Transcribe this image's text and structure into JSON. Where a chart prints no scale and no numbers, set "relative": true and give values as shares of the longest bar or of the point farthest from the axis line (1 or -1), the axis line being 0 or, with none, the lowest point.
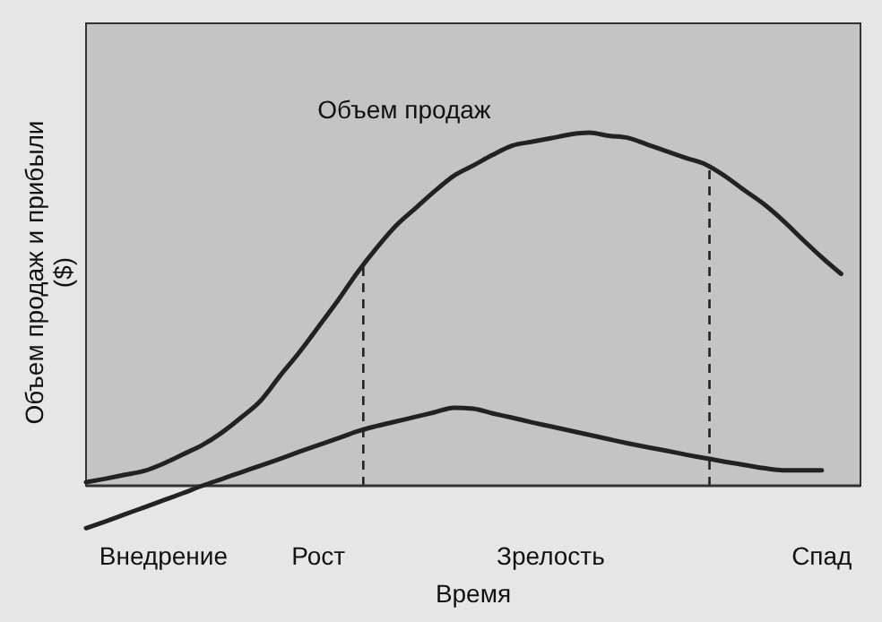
{
  "chart_data": {
    "type": "line",
    "relative": true,
    "xlabel": "Время",
    "ylabel": "Объем продаж и прибыли ($)",
    "categories": [
      null,
      null,
      null,
      null,
      "Внедрение",
      null,
      null,
      null,
      null,
      null,
      null,
      null,
      "Рост",
      null,
      null,
      null,
      null,
      null,
      null,
      null,
      null,
      null,
      null,
      null,
      "Зрелость",
      null,
      null,
      null,
      null,
      null,
      null,
      null,
      null,
      null,
      null,
      null,
      null,
      null,
      "Спад",
      null,
      null
    ],
    "series": [
      {
        "name": "Объем продаж",
        "color": "#222222",
        "values": [
          0.01,
          0.02,
          0.031,
          0.042,
          0.063,
          0.089,
          0.115,
          0.15,
          0.193,
          0.24,
          0.31,
          0.377,
          0.45,
          0.524,
          0.603,
          0.673,
          0.736,
          0.785,
          0.834,
          0.878,
          0.907,
          0.937,
          0.963,
          0.974,
          0.984,
          0.995,
          1,
          0.991,
          0.985,
          0.966,
          0.947,
          0.928,
          0.91,
          0.877,
          0.837,
          0.798,
          0.751,
          0.698,
          0.647,
          0.6,
          null
        ]
      },
      {
        "color": "#222222",
        "values": [
          -0.12,
          -0.101,
          -0.081,
          -0.061,
          -0.041,
          -0.021,
          0,
          0.019,
          0.038,
          0.057,
          0.076,
          0.096,
          0.115,
          0.134,
          0.154,
          0.169,
          0.182,
          0.195,
          0.208,
          0.221,
          0.218,
          0.205,
          0.193,
          0.18,
          0.168,
          0.156,
          0.144,
          0.132,
          0.12,
          0.109,
          0.099,
          0.088,
          0.078,
          0.068,
          0.059,
          0.05,
          0.044,
          0.044,
          0.044,
          null,
          null
        ]
      }
    ]
  }
}
